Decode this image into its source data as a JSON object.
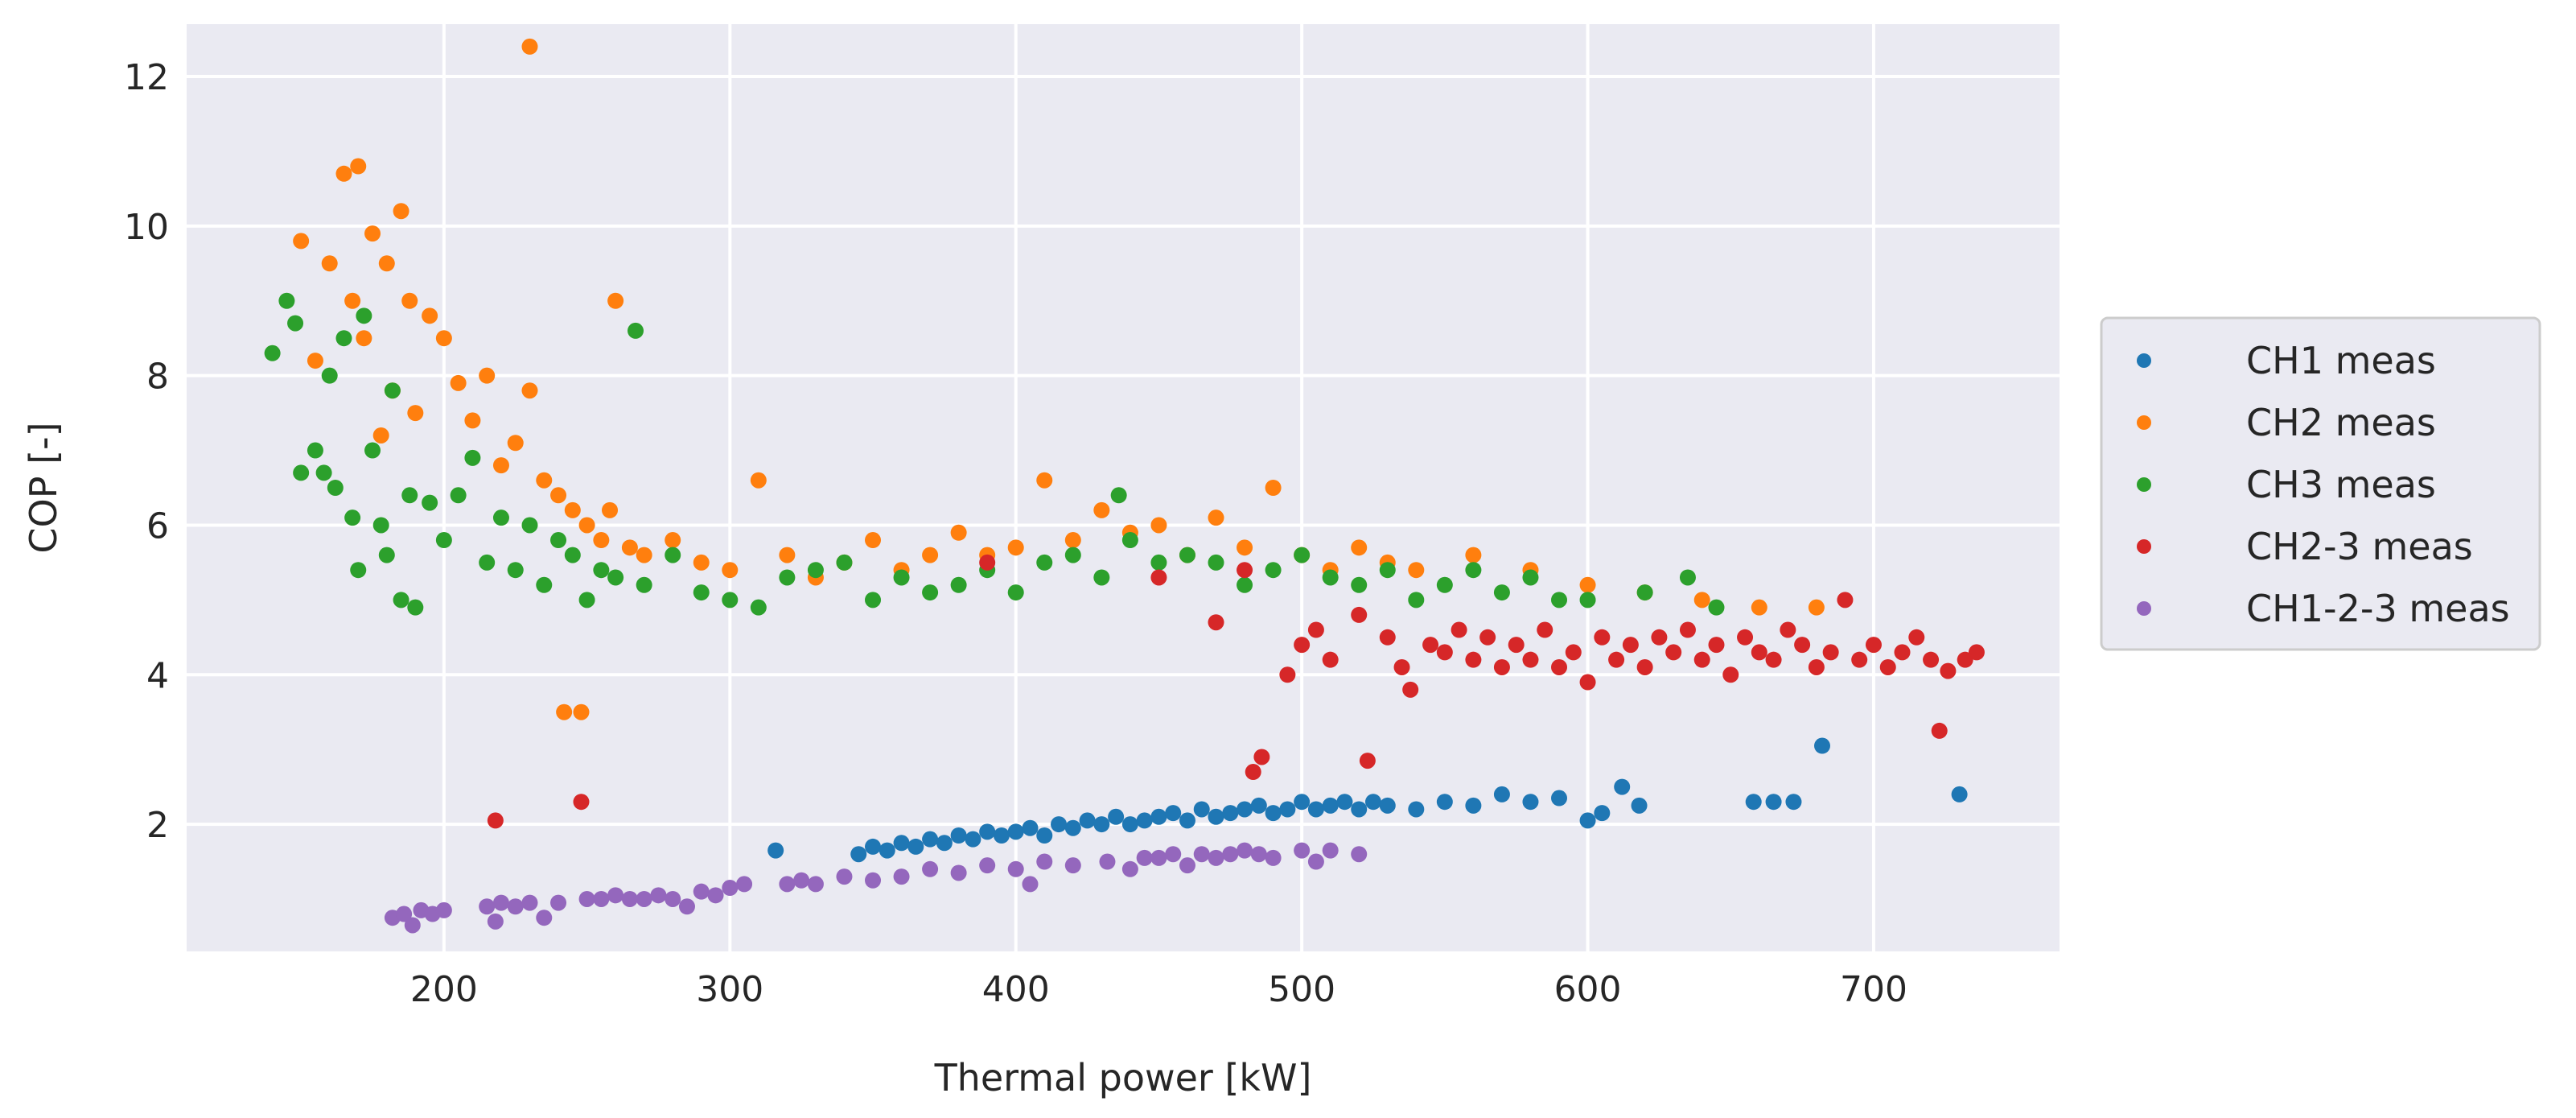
{
  "chart_data": {
    "type": "scatter",
    "title": "",
    "xlabel": "Thermal power [kW]",
    "ylabel": "COP [-]",
    "xlim": [
      110,
      765
    ],
    "ylim": [
      0.3,
      12.7
    ],
    "xticks": [
      200,
      300,
      400,
      500,
      600,
      700
    ],
    "yticks": [
      2,
      4,
      6,
      8,
      10,
      12
    ],
    "grid": true,
    "legend_position": "right-center",
    "series": [
      {
        "name": "CH1 meas",
        "color": "#1f77b4",
        "x": [
          316,
          345,
          350,
          355,
          360,
          365,
          370,
          375,
          380,
          385,
          390,
          395,
          400,
          405,
          410,
          415,
          420,
          425,
          430,
          435,
          440,
          445,
          450,
          455,
          460,
          465,
          470,
          475,
          480,
          485,
          490,
          495,
          500,
          505,
          510,
          515,
          520,
          525,
          530,
          540,
          550,
          560,
          570,
          580,
          590,
          600,
          605,
          612,
          618,
          658,
          665,
          672,
          682,
          730
        ],
        "y": [
          1.65,
          1.6,
          1.7,
          1.65,
          1.75,
          1.7,
          1.8,
          1.75,
          1.85,
          1.8,
          1.9,
          1.85,
          1.9,
          1.95,
          1.85,
          2.0,
          1.95,
          2.05,
          2.0,
          2.1,
          2.0,
          2.05,
          2.1,
          2.15,
          2.05,
          2.2,
          2.1,
          2.15,
          2.2,
          2.25,
          2.15,
          2.2,
          2.3,
          2.2,
          2.25,
          2.3,
          2.2,
          2.3,
          2.25,
          2.2,
          2.3,
          2.25,
          2.4,
          2.3,
          2.35,
          2.05,
          2.15,
          2.5,
          2.25,
          2.3,
          2.3,
          2.3,
          3.05,
          2.4
        ]
      },
      {
        "name": "CH2 meas",
        "color": "#ff7f0e",
        "x": [
          150,
          155,
          160,
          165,
          168,
          170,
          172,
          175,
          178,
          180,
          182,
          185,
          188,
          190,
          195,
          200,
          205,
          210,
          215,
          220,
          225,
          230,
          235,
          240,
          245,
          250,
          255,
          258,
          260,
          265,
          270,
          280,
          290,
          300,
          310,
          320,
          330,
          340,
          350,
          360,
          370,
          380,
          390,
          400,
          410,
          420,
          430,
          440,
          450,
          460,
          470,
          480,
          490,
          500,
          510,
          520,
          530,
          540,
          560,
          580,
          600,
          620,
          640,
          660,
          680,
          230,
          242,
          248
        ],
        "y": [
          9.8,
          8.2,
          9.5,
          10.7,
          9.0,
          10.8,
          8.5,
          9.9,
          7.2,
          9.5,
          7.8,
          10.2,
          9.0,
          7.5,
          8.8,
          8.5,
          7.9,
          7.4,
          8.0,
          6.8,
          7.1,
          7.8,
          6.6,
          6.4,
          6.2,
          6.0,
          5.8,
          6.2,
          9.0,
          5.7,
          5.6,
          5.8,
          5.5,
          5.4,
          6.6,
          5.6,
          5.3,
          5.5,
          5.8,
          5.4,
          5.6,
          5.9,
          5.6,
          5.7,
          6.6,
          5.8,
          6.2,
          5.9,
          6.0,
          5.6,
          6.1,
          5.7,
          6.5,
          5.6,
          5.4,
          5.7,
          5.5,
          5.4,
          5.6,
          5.4,
          5.2,
          5.1,
          5.0,
          4.9,
          4.9,
          12.4,
          3.5,
          3.5
        ]
      },
      {
        "name": "CH3 meas",
        "color": "#2ca02c",
        "x": [
          140,
          145,
          148,
          150,
          155,
          158,
          160,
          162,
          165,
          168,
          170,
          172,
          175,
          178,
          180,
          182,
          185,
          188,
          190,
          195,
          200,
          205,
          210,
          215,
          220,
          225,
          230,
          235,
          240,
          245,
          250,
          255,
          260,
          267,
          270,
          280,
          290,
          300,
          310,
          320,
          330,
          340,
          350,
          360,
          370,
          380,
          390,
          400,
          410,
          420,
          430,
          436,
          440,
          450,
          460,
          470,
          480,
          490,
          500,
          510,
          520,
          530,
          540,
          550,
          560,
          570,
          580,
          590,
          600,
          620,
          635,
          645
        ],
        "y": [
          8.3,
          9.0,
          8.7,
          6.7,
          7.0,
          6.7,
          8.0,
          6.5,
          8.5,
          6.1,
          5.4,
          8.8,
          7.0,
          6.0,
          5.6,
          7.8,
          5.0,
          6.4,
          4.9,
          6.3,
          5.8,
          6.4,
          6.9,
          5.5,
          6.1,
          5.4,
          6.0,
          5.2,
          5.8,
          5.6,
          5.0,
          5.4,
          5.3,
          8.6,
          5.2,
          5.6,
          5.1,
          5.0,
          4.9,
          5.3,
          5.4,
          5.5,
          5.0,
          5.3,
          5.1,
          5.2,
          5.4,
          5.1,
          5.5,
          5.6,
          5.3,
          6.4,
          5.8,
          5.5,
          5.6,
          5.5,
          5.2,
          5.4,
          5.6,
          5.3,
          5.2,
          5.4,
          5.0,
          5.2,
          5.4,
          5.1,
          5.3,
          5.0,
          5.0,
          5.1,
          5.3,
          4.9
        ]
      },
      {
        "name": "CH2-3 meas",
        "color": "#d62728",
        "x": [
          218,
          248,
          390,
          450,
          470,
          480,
          483,
          486,
          495,
          500,
          505,
          510,
          520,
          523,
          530,
          535,
          538,
          545,
          550,
          555,
          560,
          565,
          570,
          575,
          580,
          585,
          590,
          595,
          600,
          605,
          610,
          615,
          620,
          625,
          630,
          635,
          640,
          645,
          650,
          655,
          660,
          665,
          670,
          675,
          680,
          685,
          690,
          695,
          700,
          705,
          710,
          715,
          720,
          723,
          726,
          732,
          736
        ],
        "y": [
          2.05,
          2.3,
          5.5,
          5.3,
          4.7,
          5.4,
          2.7,
          2.9,
          4.0,
          4.4,
          4.6,
          4.2,
          4.8,
          2.85,
          4.5,
          4.1,
          3.8,
          4.4,
          4.3,
          4.6,
          4.2,
          4.5,
          4.1,
          4.4,
          4.2,
          4.6,
          4.1,
          4.3,
          3.9,
          4.5,
          4.2,
          4.4,
          4.1,
          4.5,
          4.3,
          4.6,
          4.2,
          4.4,
          4.0,
          4.5,
          4.3,
          4.2,
          4.6,
          4.4,
          4.1,
          4.3,
          5.0,
          4.2,
          4.4,
          4.1,
          4.3,
          4.5,
          4.2,
          3.25,
          4.05,
          4.2,
          4.3
        ]
      },
      {
        "name": "CH1-2-3 meas",
        "color": "#9467bd",
        "x": [
          182,
          186,
          189,
          192,
          196,
          200,
          215,
          218,
          220,
          225,
          230,
          235,
          240,
          250,
          255,
          260,
          265,
          270,
          275,
          280,
          285,
          290,
          295,
          300,
          305,
          320,
          325,
          330,
          340,
          350,
          360,
          370,
          380,
          390,
          400,
          405,
          410,
          420,
          432,
          440,
          445,
          450,
          455,
          460,
          465,
          470,
          475,
          480,
          485,
          490,
          500,
          505,
          510,
          520
        ],
        "y": [
          0.75,
          0.8,
          0.65,
          0.85,
          0.8,
          0.85,
          0.9,
          0.7,
          0.95,
          0.9,
          0.95,
          0.75,
          0.95,
          1.0,
          1.0,
          1.05,
          1.0,
          1.0,
          1.05,
          1.0,
          0.9,
          1.1,
          1.05,
          1.15,
          1.2,
          1.2,
          1.25,
          1.2,
          1.3,
          1.25,
          1.3,
          1.4,
          1.35,
          1.45,
          1.4,
          1.2,
          1.5,
          1.45,
          1.5,
          1.4,
          1.55,
          1.55,
          1.6,
          1.45,
          1.6,
          1.55,
          1.6,
          1.65,
          1.6,
          1.55,
          1.65,
          1.5,
          1.65,
          1.6
        ]
      }
    ]
  }
}
